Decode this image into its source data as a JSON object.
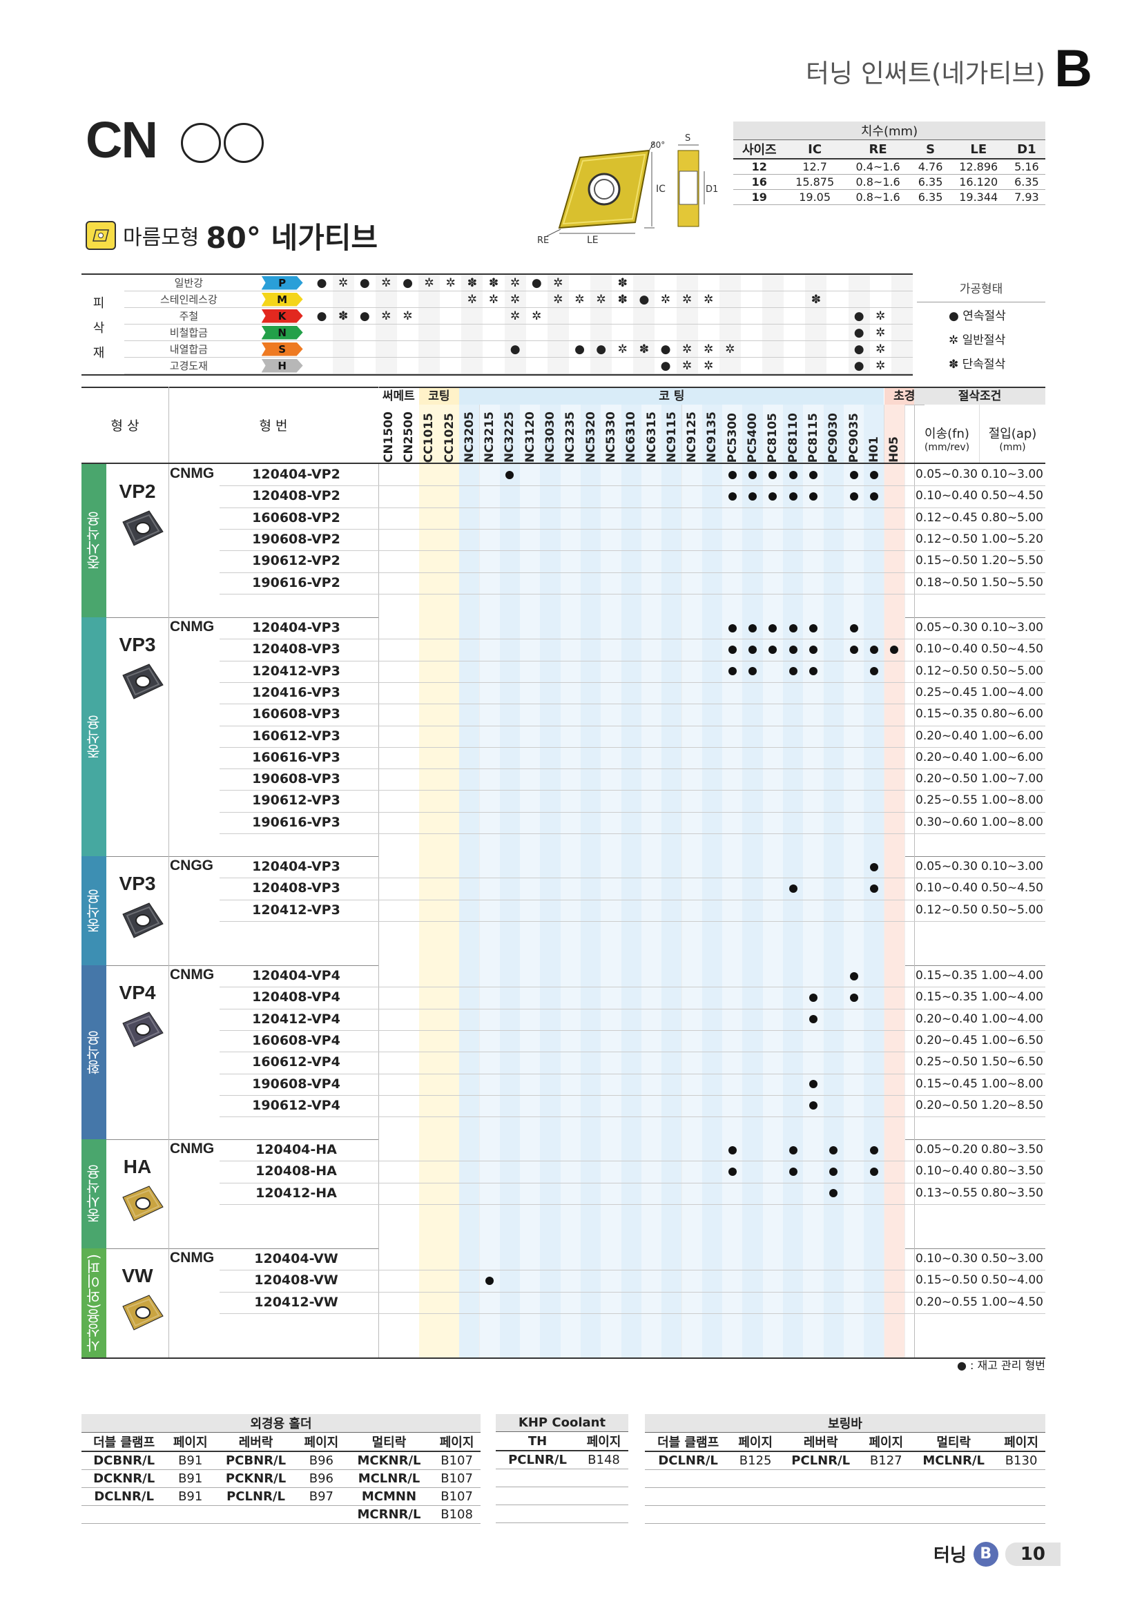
{
  "header": {
    "title": "터닝 인써트(네가티브)",
    "letter": "B"
  },
  "product": {
    "code": "CN",
    "subtitle_small": "마름모형",
    "subtitle_large": "80° 네가티브"
  },
  "diagram_labels": {
    "angle": "80°",
    "s": "S",
    "ic": "IC",
    "d1": "D1",
    "re": "RE",
    "le": "LE"
  },
  "dimensions": {
    "title": "치수(mm)",
    "headers": [
      "사이즈",
      "IC",
      "RE",
      "S",
      "LE",
      "D1"
    ],
    "rows": [
      [
        "12",
        "12.7",
        "0.4~1.6",
        "4.76",
        "12.896",
        "5.16"
      ],
      [
        "16",
        "15.875",
        "0.8~1.6",
        "6.35",
        "16.120",
        "6.35"
      ],
      [
        "19",
        "19.05",
        "0.8~1.6",
        "6.35",
        "19.344",
        "7.93"
      ]
    ]
  },
  "materials": {
    "side_label": [
      "피",
      "삭",
      "재"
    ],
    "rows": [
      {
        "name": "일반강",
        "code": "P",
        "color": "#2a9fd8"
      },
      {
        "name": "스테인레스강",
        "code": "M",
        "color": "#f4d51a"
      },
      {
        "name": "주철",
        "code": "K",
        "color": "#e2281f"
      },
      {
        "name": "비철합금",
        "code": "N",
        "color": "#23a049"
      },
      {
        "name": "내열합금",
        "code": "S",
        "color": "#ee7a22"
      },
      {
        "name": "고경도재",
        "code": "H",
        "color": "#b7b7b7"
      }
    ],
    "legend_title": "가공형태",
    "legend": [
      "연속절삭",
      "일반절삭",
      "단속절삭"
    ]
  },
  "columns": {
    "group_headers": [
      "써메트",
      "코팅",
      "코 팅",
      "초경",
      "절삭조건"
    ],
    "grades": [
      "CN1500",
      "CN2500",
      "CC1015",
      "CC1025",
      "NC3205",
      "NC3215",
      "NC3225",
      "NC3120",
      "NC3030",
      "NC3235",
      "NC5320",
      "NC5330",
      "NC6310",
      "NC6315",
      "NC9115",
      "NC9125",
      "NC9135",
      "PC5300",
      "PC5400",
      "PC8105",
      "PC8110",
      "PC8115",
      "PC9030",
      "PC9035",
      "H01",
      "H05"
    ],
    "feed": "이송(fn)",
    "feed_unit": "(mm/rev)",
    "depth": "절입(ap)",
    "depth_unit": "(mm)",
    "shape": "형 상",
    "model": "형 번"
  },
  "sections": [
    {
      "band": "중사삭용",
      "band_color": "#4aa66d",
      "name": "VP2",
      "body": "#3d3f46",
      "prefix": "CNMG",
      "rows": [
        {
          "model": "120404-VP2",
          "dots": [
            6,
            17,
            18,
            19,
            20,
            21,
            23,
            24
          ],
          "feed": "0.05~0.30",
          "depth": "0.10~3.00"
        },
        {
          "model": "120408-VP2",
          "dots": [
            17,
            18,
            19,
            20,
            21,
            23,
            24
          ],
          "feed": "0.10~0.40",
          "depth": "0.50~4.50"
        },
        {
          "model": "160608-VP2",
          "dots": [],
          "feed": "0.12~0.45",
          "depth": "0.80~5.00"
        },
        {
          "model": "190608-VP2",
          "dots": [],
          "feed": "0.12~0.50",
          "depth": "1.00~5.20"
        },
        {
          "model": "190612-VP2",
          "dots": [],
          "feed": "0.15~0.50",
          "depth": "1.20~5.50"
        },
        {
          "model": "190616-VP2",
          "dots": [],
          "feed": "0.18~0.50",
          "depth": "1.50~5.50"
        }
      ]
    },
    {
      "band": "중삭용",
      "band_color": "#46a8a0",
      "name": "VP3",
      "body": "#3d3f46",
      "prefix": "CNMG",
      "rows": [
        {
          "model": "120404-VP3",
          "dots": [
            17,
            18,
            19,
            20,
            21,
            23
          ],
          "feed": "0.05~0.30",
          "depth": "0.10~3.00"
        },
        {
          "model": "120408-VP3",
          "dots": [
            17,
            18,
            19,
            20,
            21,
            23,
            24,
            25
          ],
          "feed": "0.10~0.40",
          "depth": "0.50~4.50"
        },
        {
          "model": "120412-VP3",
          "dots": [
            17,
            18,
            20,
            21,
            24
          ],
          "feed": "0.12~0.50",
          "depth": "0.50~5.00"
        },
        {
          "model": "120416-VP3",
          "dots": [],
          "feed": "0.25~0.45",
          "depth": "1.00~4.00"
        },
        {
          "model": "160608-VP3",
          "dots": [],
          "feed": "0.15~0.35",
          "depth": "0.80~6.00"
        },
        {
          "model": "160612-VP3",
          "dots": [],
          "feed": "0.20~0.40",
          "depth": "1.00~6.00"
        },
        {
          "model": "160616-VP3",
          "dots": [],
          "feed": "0.20~0.40",
          "depth": "1.00~6.00"
        },
        {
          "model": "190608-VP3",
          "dots": [],
          "feed": "0.20~0.50",
          "depth": "1.00~7.00"
        },
        {
          "model": "190612-VP3",
          "dots": [],
          "feed": "0.25~0.55",
          "depth": "1.00~8.00"
        },
        {
          "model": "190616-VP3",
          "dots": [],
          "feed": "0.30~0.60",
          "depth": "1.00~8.00"
        }
      ]
    },
    {
      "band": "중삭용",
      "band_color": "#3d8fb3",
      "name": "VP3",
      "body": "#3d3f46",
      "prefix": "CNGG",
      "rows": [
        {
          "model": "120404-VP3",
          "dots": [
            24
          ],
          "feed": "0.05~0.30",
          "depth": "0.10~3.00"
        },
        {
          "model": "120408-VP3",
          "dots": [
            20,
            24
          ],
          "feed": "0.10~0.40",
          "depth": "0.50~4.50"
        },
        {
          "model": "120412-VP3",
          "dots": [],
          "feed": "0.12~0.50",
          "depth": "0.50~5.00"
        }
      ]
    },
    {
      "band": "황삭용",
      "band_color": "#4577a9",
      "name": "VP4",
      "body": "#4c4a5c",
      "prefix": "CNMG",
      "rows": [
        {
          "model": "120404-VP4",
          "dots": [
            23
          ],
          "feed": "0.15~0.35",
          "depth": "1.00~4.00"
        },
        {
          "model": "120408-VP4",
          "dots": [
            21,
            23
          ],
          "feed": "0.15~0.35",
          "depth": "1.00~4.00"
        },
        {
          "model": "120412-VP4",
          "dots": [
            21
          ],
          "feed": "0.20~0.40",
          "depth": "1.00~4.00"
        },
        {
          "model": "160608-VP4",
          "dots": [],
          "feed": "0.20~0.45",
          "depth": "1.00~6.50"
        },
        {
          "model": "160612-VP4",
          "dots": [],
          "feed": "0.25~0.50",
          "depth": "1.50~6.50"
        },
        {
          "model": "190608-VP4",
          "dots": [
            21
          ],
          "feed": "0.15~0.45",
          "depth": "1.00~8.00"
        },
        {
          "model": "190612-VP4",
          "dots": [
            21
          ],
          "feed": "0.20~0.50",
          "depth": "1.20~8.50"
        }
      ]
    },
    {
      "band": "중사삭용",
      "band_color": "#4aa66d",
      "name": "HA",
      "body": "#c9a441",
      "prefix": "CNMG",
      "rows": [
        {
          "model": "120404-HA",
          "dots": [
            17,
            20,
            22,
            24
          ],
          "feed": "0.05~0.20",
          "depth": "0.80~3.50"
        },
        {
          "model": "120408-HA",
          "dots": [
            17,
            20,
            22,
            24
          ],
          "feed": "0.10~0.40",
          "depth": "0.80~3.50"
        },
        {
          "model": "120412-HA",
          "dots": [
            22
          ],
          "feed": "0.13~0.55",
          "depth": "0.80~3.50"
        }
      ]
    },
    {
      "band": "사상용(와이퍼)",
      "band_color": "#5eb052",
      "name": "VW",
      "body": "#c9a441",
      "prefix": "CNMG",
      "rows": [
        {
          "model": "120404-VW",
          "dots": [],
          "feed": "0.10~0.30",
          "depth": "0.50~3.00"
        },
        {
          "model": "120408-VW",
          "dots": [
            5
          ],
          "feed": "0.15~0.50",
          "depth": "0.50~4.00"
        },
        {
          "model": "120412-VW",
          "dots": [],
          "feed": "0.20~0.55",
          "depth": "1.00~4.50"
        }
      ]
    }
  ],
  "stock_note": "● : 재고 관리 형번",
  "holders": {
    "outer": {
      "title": "외경용 홀더",
      "headers": [
        "더블 클램프",
        "페이지",
        "레버락",
        "페이지",
        "멀티락",
        "페이지"
      ],
      "rows": [
        [
          "DCBNR/L",
          "B91",
          "PCBNR/L",
          "B96",
          "MCKNR/L",
          "B107"
        ],
        [
          "DCKNR/L",
          "B91",
          "PCKNR/L",
          "B96",
          "MCLNR/L",
          "B107"
        ],
        [
          "DCLNR/L",
          "B91",
          "PCLNR/L",
          "B97",
          "MCMNN",
          "B107"
        ],
        [
          "",
          "",
          "",
          "",
          "MCRNR/L",
          "B108"
        ]
      ]
    },
    "khp": {
      "title": "KHP Coolant",
      "headers": [
        "TH",
        "페이지"
      ],
      "rows": [
        [
          "PCLNR/L",
          "B148"
        ],
        [
          "",
          ""
        ],
        [
          "",
          ""
        ],
        [
          "",
          ""
        ]
      ]
    },
    "boring": {
      "title": "보링바",
      "headers": [
        "더블 클램프",
        "페이지",
        "레버락",
        "페이지",
        "멀티락",
        "페이지"
      ],
      "rows": [
        [
          "DCLNR/L",
          "B125",
          "PCLNR/L",
          "B127",
          "MCLNR/L",
          "B130"
        ],
        [
          "",
          "",
          "",
          "",
          "",
          ""
        ],
        [
          "",
          "",
          "",
          "",
          "",
          ""
        ],
        [
          "",
          "",
          "",
          "",
          "",
          ""
        ]
      ]
    }
  },
  "footer": {
    "label": "터닝",
    "letter": "B",
    "page": "10"
  }
}
